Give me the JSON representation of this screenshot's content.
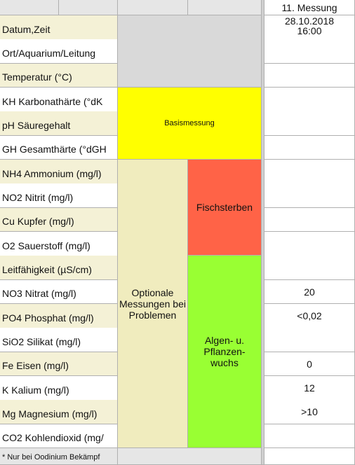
{
  "header": {
    "measurement": "11. Messung"
  },
  "rows": [
    {
      "label": "Datum,Zeit",
      "value": "28.10.2018\n16:00"
    },
    {
      "label": "Ort/Aquarium/Leitung"
    },
    {
      "label": "Temperatur (°C)"
    },
    {
      "label": "KH Karbonathärte (°dK"
    },
    {
      "label": "pH Säuregehalt"
    },
    {
      "label": "GH Gesamthärte (°dGH"
    },
    {
      "label": "NH4 Ammonium (mg/l)"
    },
    {
      "label": "NO2 Nitrit (mg/l)"
    },
    {
      "label": "Cu Kupfer (mg/l)"
    },
    {
      "label": "O2 Sauerstoff (mg/l)"
    },
    {
      "label": "Leitfähigkeit (µS/cm)"
    },
    {
      "label": "NO3 Nitrat (mg/l)",
      "value": "20"
    },
    {
      "label": "PO4 Phosphat (mg/l)",
      "value": "<0,02"
    },
    {
      "label": "SiO2 Silikat (mg/l)"
    },
    {
      "label": "Fe Eisen (mg/l)",
      "value": "0"
    },
    {
      "label": "K Kalium (mg/l)",
      "value": "12"
    },
    {
      "label": "Mg Magnesium (mg/l)",
      "value": ">10"
    },
    {
      "label": "CO2 Kohlendioxid (mg/"
    }
  ],
  "groups": {
    "basis": "Basismessung",
    "optional": "Optionale Messungen bei Problemen",
    "fish": "Fischsterben",
    "algae": "Algen- u. Pflanzen-wuchs"
  },
  "footnote": "* Nur bei  Oodinium Bekämpf"
}
